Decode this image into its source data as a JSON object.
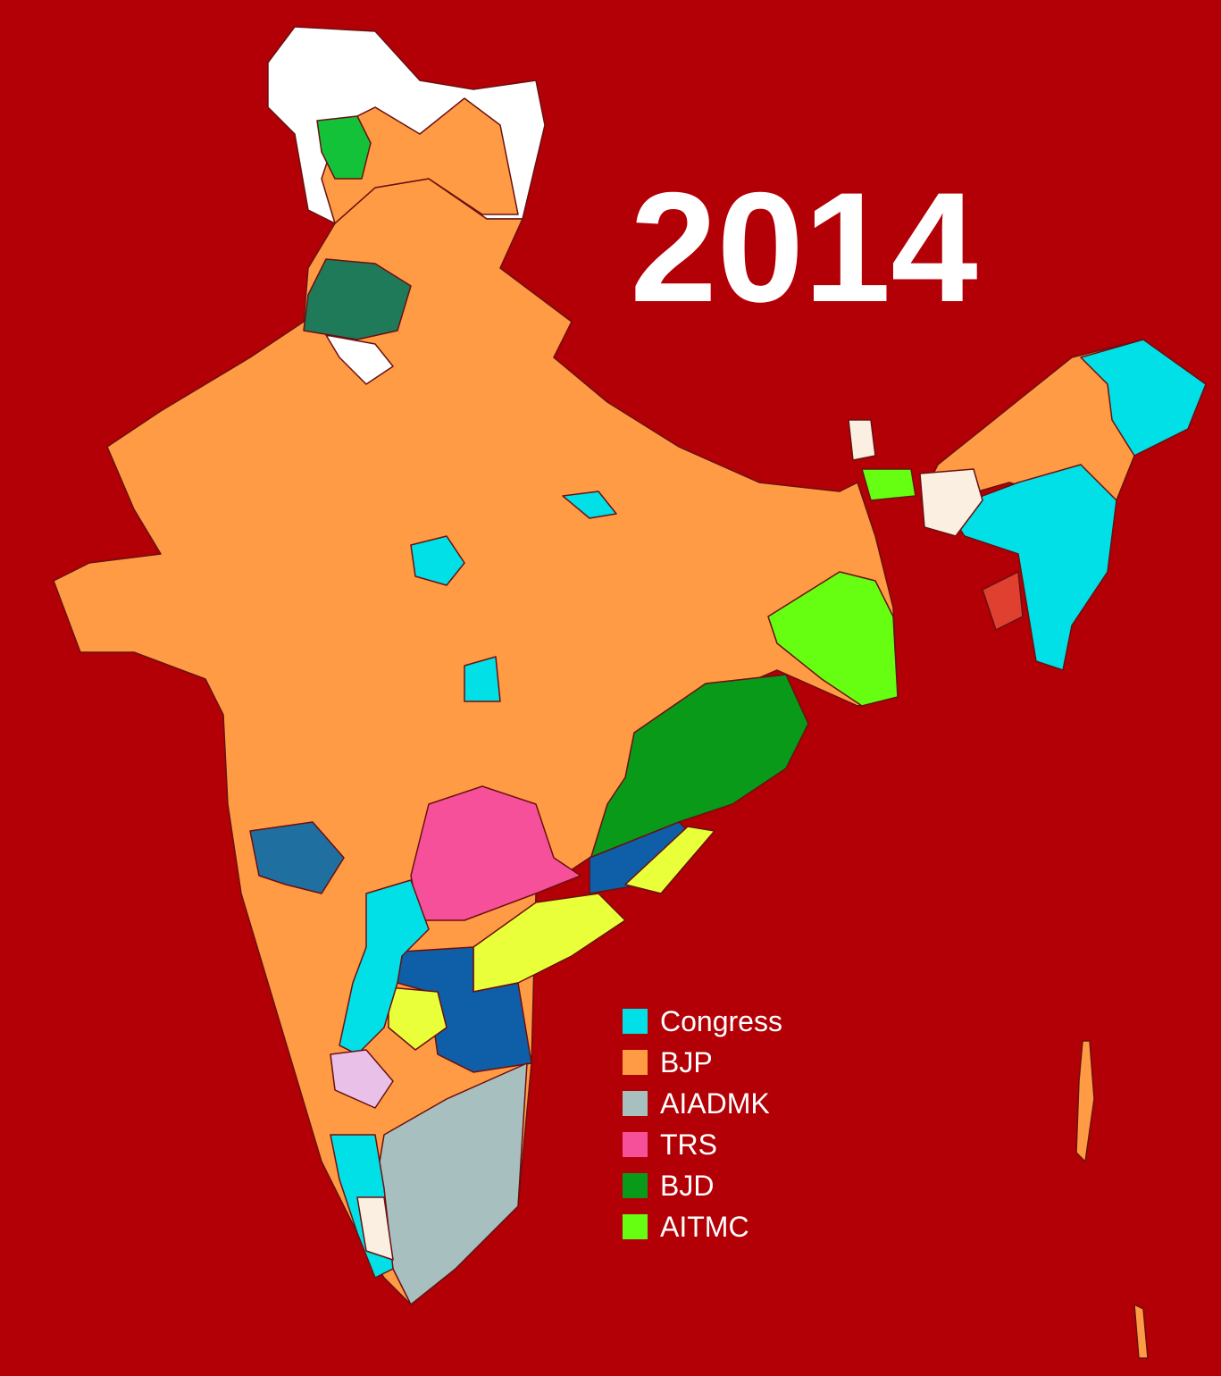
{
  "title": "2014",
  "legend": [
    {
      "name": "Congress",
      "color": "#00e0e6"
    },
    {
      "name": "BJP",
      "color": "#ff9a45"
    },
    {
      "name": "AIADMK",
      "color": "#a8bfbf"
    },
    {
      "name": "TRS",
      "color": "#f7509a"
    },
    {
      "name": "BJD",
      "color": "#0a9a1a"
    },
    {
      "name": "AITMC",
      "color": "#66ff11"
    }
  ]
}
